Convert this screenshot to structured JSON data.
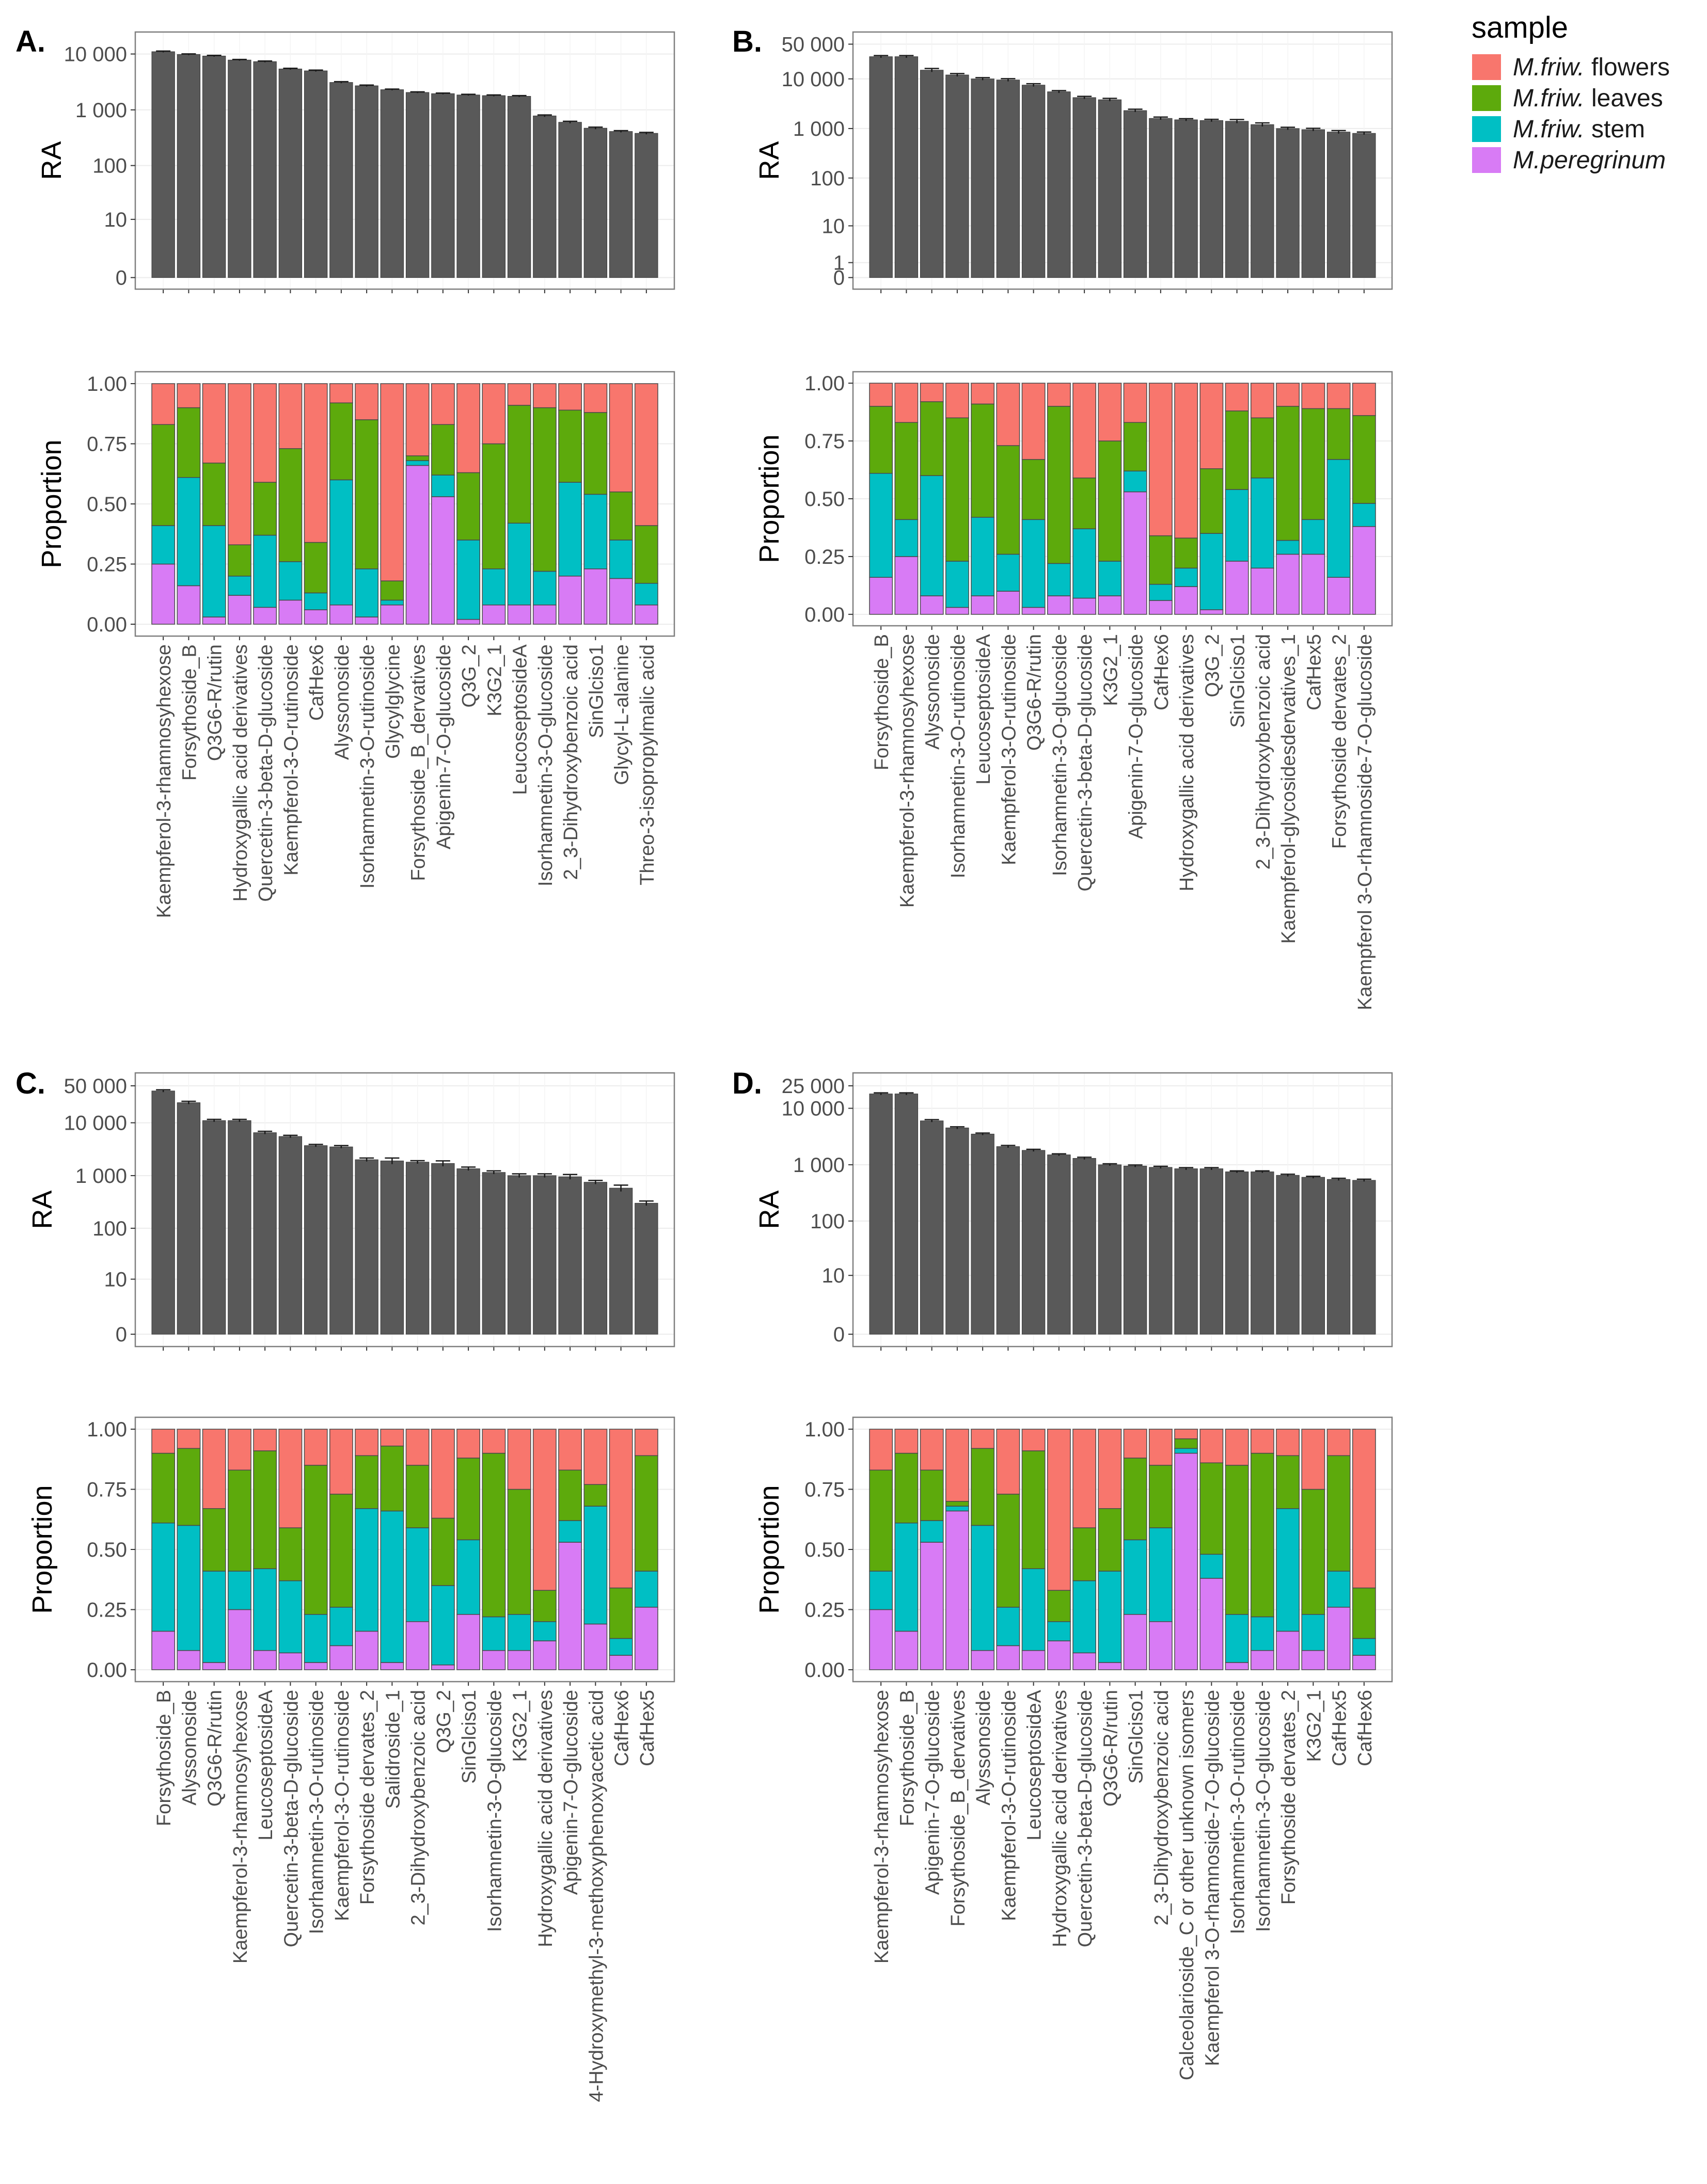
{
  "legend": {
    "title": "sample",
    "items": [
      {
        "name": "M.friw.",
        "suffix": " flowers",
        "color": "#F8766D"
      },
      {
        "name": "M.friw.",
        "suffix": " leaves",
        "color": "#5DAA0C"
      },
      {
        "name": "M.friw.",
        "suffix": " stem",
        "color": "#00BFC4"
      },
      {
        "name": "M.peregrinum",
        "suffix": "",
        "color": "#D87BF5"
      }
    ]
  },
  "colors": {
    "bar_fill": "#595959",
    "panel_border": "#7f7f7f",
    "grid": "#ececec",
    "error_bar": "#1a1a1a"
  },
  "chart_data": [
    {
      "panel": "A.",
      "type": "bar",
      "top": {
        "ylabel": "RA",
        "yscale": "log1p",
        "yticks": [
          0,
          10,
          100,
          1000,
          10000
        ],
        "ytick_labels": [
          "0",
          "10",
          "100",
          "1 000",
          "10 000"
        ],
        "ymax": 15000,
        "values": [
          11000,
          9800,
          9200,
          7800,
          7300,
          5400,
          5000,
          3100,
          2700,
          2300,
          2050,
          1950,
          1850,
          1800,
          1750,
          780,
          600,
          470,
          410,
          380
        ],
        "errors": [
          300,
          250,
          250,
          200,
          200,
          150,
          150,
          100,
          80,
          60,
          50,
          50,
          50,
          50,
          50,
          30,
          25,
          20,
          15,
          15
        ]
      },
      "bottom": {
        "ylabel": "Proportion",
        "type": "stacked-bar",
        "yticks": [
          0,
          0.25,
          0.5,
          0.75,
          1.0
        ],
        "ytick_labels": [
          "0.00",
          "0.25",
          "0.50",
          "0.75",
          "1.00"
        ],
        "series_order": [
          "M.peregrinum",
          "M.friw. stem",
          "M.friw. leaves",
          "M.friw. flowers"
        ],
        "categories": [
          "Kaempferol-3-rhamnosyhexose",
          "Forsythoside_B",
          "Q3G6-R/rutin",
          "Hydroxygallic acid derivatives",
          "Quercetin-3-beta-D-glucoside",
          "Kaempferol-3-O-rutinoside",
          "CafHex6",
          "Alyssonoside",
          "Isorhamnetin-3-O-rutinoside",
          "Glycylglycine",
          "Forsythoside_B_dervatives",
          "Apigenin-7-O-glucoside",
          "Q3G_2",
          "K3G2_1",
          "LeucoseptosideA",
          "Isorhamnetin-3-O-glucoside",
          "2_3-Dihydroxybenzoic acid",
          "SinGlciso1",
          "Glycyl-L-alanine",
          "Threo-3-isopropylmalic acid"
        ],
        "series": [
          {
            "name": "M.peregrinum",
            "values": [
              0.25,
              0.16,
              0.03,
              0.12,
              0.07,
              0.1,
              0.06,
              0.08,
              0.03,
              0.08,
              0.66,
              0.53,
              0.02,
              0.08,
              0.08,
              0.08,
              0.2,
              0.23,
              0.19,
              0.08
            ]
          },
          {
            "name": "M.friw. stem",
            "values": [
              0.16,
              0.45,
              0.38,
              0.08,
              0.3,
              0.16,
              0.07,
              0.52,
              0.2,
              0.02,
              0.02,
              0.09,
              0.33,
              0.15,
              0.34,
              0.14,
              0.39,
              0.31,
              0.16,
              0.09
            ]
          },
          {
            "name": "M.friw. leaves",
            "values": [
              0.42,
              0.29,
              0.26,
              0.13,
              0.22,
              0.47,
              0.21,
              0.32,
              0.62,
              0.08,
              0.02,
              0.21,
              0.28,
              0.52,
              0.49,
              0.68,
              0.3,
              0.34,
              0.2,
              0.24
            ]
          },
          {
            "name": "M.friw. flowers",
            "values": [
              0.17,
              0.1,
              0.33,
              0.67,
              0.41,
              0.27,
              0.66,
              0.08,
              0.15,
              0.82,
              0.3,
              0.17,
              0.37,
              0.25,
              0.09,
              0.1,
              0.11,
              0.12,
              0.45,
              0.59
            ]
          }
        ]
      }
    },
    {
      "panel": "B.",
      "type": "bar",
      "top": {
        "ylabel": "RA",
        "yscale": "log1p",
        "yticks": [
          0,
          1,
          10,
          100,
          1000,
          10000,
          50000
        ],
        "ytick_labels": [
          "0",
          "1",
          "10",
          "100",
          "1 000",
          "10 000",
          "50 000"
        ],
        "ymax": 50000,
        "values": [
          28000,
          28000,
          15000,
          12000,
          10000,
          9500,
          7500,
          5500,
          4200,
          3800,
          2300,
          1600,
          1500,
          1450,
          1400,
          1200,
          1000,
          950,
          850,
          800
        ],
        "errors": [
          1500,
          1500,
          1200,
          800,
          600,
          600,
          500,
          300,
          250,
          250,
          150,
          100,
          80,
          80,
          120,
          100,
          60,
          60,
          60,
          50
        ]
      },
      "bottom": {
        "ylabel": "Proportion",
        "type": "stacked-bar",
        "yticks": [
          0,
          0.25,
          0.5,
          0.75,
          1.0
        ],
        "ytick_labels": [
          "0.00",
          "0.25",
          "0.50",
          "0.75",
          "1.00"
        ],
        "series_order": [
          "M.peregrinum",
          "M.friw. stem",
          "M.friw. leaves",
          "M.friw. flowers"
        ],
        "categories": [
          "Forsythoside_B",
          "Kaempferol-3-rhamnosyhexose",
          "Alyssonoside",
          "Isorhamnetin-3-O-rutinoside",
          "LeucoseptosideA",
          "Kaempferol-3-O-rutinoside",
          "Q3G6-R/rutin",
          "Isorhamnetin-3-O-glucoside",
          "Quercetin-3-beta-D-glucoside",
          "K3G2_1",
          "Apigenin-7-O-glucoside",
          "CafHex6",
          "Hydroxygallic acid derivatives",
          "Q3G_2",
          "SinGlciso1",
          "2_3-Dihydroxybenzoic acid",
          "Kaempferol-glycosidesdervatives_1",
          "CafHex5",
          "Forsythoside dervates_2",
          "Kaempferol 3-O-rhamnoside-7-O-glucoside"
        ],
        "series": [
          {
            "name": "M.peregrinum",
            "values": [
              0.16,
              0.25,
              0.08,
              0.03,
              0.08,
              0.1,
              0.03,
              0.08,
              0.07,
              0.08,
              0.53,
              0.06,
              0.12,
              0.02,
              0.23,
              0.2,
              0.26,
              0.26,
              0.16,
              0.38
            ]
          },
          {
            "name": "M.friw. stem",
            "values": [
              0.45,
              0.16,
              0.52,
              0.2,
              0.34,
              0.16,
              0.38,
              0.14,
              0.3,
              0.15,
              0.09,
              0.07,
              0.08,
              0.33,
              0.31,
              0.39,
              0.06,
              0.15,
              0.51,
              0.1
            ]
          },
          {
            "name": "M.friw. leaves",
            "values": [
              0.29,
              0.42,
              0.32,
              0.62,
              0.49,
              0.47,
              0.26,
              0.68,
              0.22,
              0.52,
              0.21,
              0.21,
              0.13,
              0.28,
              0.34,
              0.26,
              0.58,
              0.48,
              0.22,
              0.38
            ]
          },
          {
            "name": "M.friw. flowers",
            "values": [
              0.1,
              0.17,
              0.08,
              0.15,
              0.09,
              0.27,
              0.33,
              0.1,
              0.41,
              0.25,
              0.17,
              0.66,
              0.67,
              0.37,
              0.12,
              0.15,
              0.1,
              0.11,
              0.11,
              0.14
            ]
          }
        ]
      }
    },
    {
      "panel": "C.",
      "type": "bar",
      "top": {
        "ylabel": "RA",
        "yscale": "log1p",
        "yticks": [
          0,
          10,
          100,
          1000,
          10000,
          50000
        ],
        "ytick_labels": [
          "0",
          "10",
          "100",
          "1 000",
          "10 000",
          "50 000"
        ],
        "ymax": 50000,
        "values": [
          40000,
          24000,
          11000,
          11000,
          6500,
          5500,
          3700,
          3500,
          2000,
          1900,
          1800,
          1700,
          1350,
          1150,
          1000,
          1000,
          950,
          750,
          580,
          300
        ],
        "errors": [
          2000,
          1500,
          600,
          600,
          400,
          300,
          200,
          200,
          150,
          250,
          120,
          200,
          100,
          80,
          80,
          80,
          100,
          60,
          80,
          30
        ]
      },
      "bottom": {
        "ylabel": "Proportion",
        "type": "stacked-bar",
        "yticks": [
          0,
          0.25,
          0.5,
          0.75,
          1.0
        ],
        "ytick_labels": [
          "0.00",
          "0.25",
          "0.50",
          "0.75",
          "1.00"
        ],
        "series_order": [
          "M.peregrinum",
          "M.friw. stem",
          "M.friw. leaves",
          "M.friw. flowers"
        ],
        "categories": [
          "Forsythoside_B",
          "Alyssonoside",
          "Q3G6-R/rutin",
          "Kaempferol-3-rhamnosyhexose",
          "LeucoseptosideA",
          "Quercetin-3-beta-D-glucoside",
          "Isorhamnetin-3-O-rutinoside",
          "Kaempferol-3-O-rutinoside",
          "Forsythoside dervates_2",
          "Salidroside_1",
          "2_3-Dihydroxybenzoic acid",
          "Q3G_2",
          "SinGlciso1",
          "Isorhamnetin-3-O-glucoside",
          "K3G2_1",
          "Hydroxygallic acid derivatives",
          "Apigenin-7-O-glucoside",
          "4-Hydroxymethyl-3-methoxyphenoxyacetic acid",
          "CafHex6",
          "CafHex5"
        ],
        "series": [
          {
            "name": "M.peregrinum",
            "values": [
              0.16,
              0.08,
              0.03,
              0.25,
              0.08,
              0.07,
              0.03,
              0.1,
              0.16,
              0.03,
              0.2,
              0.02,
              0.23,
              0.08,
              0.08,
              0.12,
              0.53,
              0.19,
              0.06,
              0.26
            ]
          },
          {
            "name": "M.friw. stem",
            "values": [
              0.45,
              0.52,
              0.38,
              0.16,
              0.34,
              0.3,
              0.2,
              0.16,
              0.51,
              0.63,
              0.39,
              0.33,
              0.31,
              0.14,
              0.15,
              0.08,
              0.09,
              0.49,
              0.07,
              0.15
            ]
          },
          {
            "name": "M.friw. leaves",
            "values": [
              0.29,
              0.32,
              0.26,
              0.42,
              0.49,
              0.22,
              0.62,
              0.47,
              0.22,
              0.27,
              0.26,
              0.28,
              0.34,
              0.68,
              0.52,
              0.13,
              0.21,
              0.09,
              0.21,
              0.48
            ]
          },
          {
            "name": "M.friw. flowers",
            "values": [
              0.1,
              0.08,
              0.33,
              0.17,
              0.09,
              0.41,
              0.15,
              0.27,
              0.11,
              0.07,
              0.15,
              0.37,
              0.12,
              0.1,
              0.25,
              0.67,
              0.17,
              0.23,
              0.66,
              0.11
            ]
          }
        ]
      }
    },
    {
      "panel": "D.",
      "type": "bar",
      "top": {
        "ylabel": "RA",
        "yscale": "log1p",
        "yticks": [
          0,
          10,
          100,
          1000,
          10000,
          25000
        ],
        "ytick_labels": [
          "0",
          "10",
          "100",
          "1 000",
          "10 000",
          "25 000"
        ],
        "ymax": 25000,
        "values": [
          18000,
          18000,
          6000,
          4500,
          3500,
          2100,
          1800,
          1500,
          1300,
          1000,
          950,
          900,
          850,
          850,
          750,
          750,
          650,
          600,
          550,
          530
        ],
        "errors": [
          800,
          800,
          300,
          200,
          150,
          100,
          80,
          60,
          60,
          40,
          40,
          40,
          40,
          40,
          30,
          30,
          30,
          25,
          25,
          25
        ]
      },
      "bottom": {
        "ylabel": "Proportion",
        "type": "stacked-bar",
        "yticks": [
          0,
          0.25,
          0.5,
          0.75,
          1.0
        ],
        "ytick_labels": [
          "0.00",
          "0.25",
          "0.50",
          "0.75",
          "1.00"
        ],
        "series_order": [
          "M.peregrinum",
          "M.friw. stem",
          "M.friw. leaves",
          "M.friw. flowers"
        ],
        "categories": [
          "Kaempferol-3-rhamnosyhexose",
          "Forsythoside_B",
          "Apigenin-7-O-glucoside",
          "Forsythoside_B_dervatives",
          "Alyssonoside",
          "Kaempferol-3-O-rutinoside",
          "LeucoseptosideA",
          "Hydroxygallic acid derivatives",
          "Quercetin-3-beta-D-glucoside",
          "Q3G6-R/rutin",
          "SinGlciso1",
          "2_3-Dihydroxybenzoic acid",
          "Calceolarioside_C or other unknown isomers",
          "Kaempferol 3-O-rhamnoside-7-O-glucoside",
          "Isorhamnetin-3-O-rutinoside",
          "Isorhamnetin-3-O-glucoside",
          "Forsythoside dervates_2",
          "K3G2_1",
          "CafHex5",
          "CafHex6"
        ],
        "series": [
          {
            "name": "M.peregrinum",
            "values": [
              0.25,
              0.16,
              0.53,
              0.66,
              0.08,
              0.1,
              0.08,
              0.12,
              0.07,
              0.03,
              0.23,
              0.2,
              0.9,
              0.38,
              0.03,
              0.08,
              0.16,
              0.08,
              0.26,
              0.06
            ]
          },
          {
            "name": "M.friw. stem",
            "values": [
              0.16,
              0.45,
              0.09,
              0.02,
              0.52,
              0.16,
              0.34,
              0.08,
              0.3,
              0.38,
              0.31,
              0.39,
              0.02,
              0.1,
              0.2,
              0.14,
              0.51,
              0.15,
              0.15,
              0.07
            ]
          },
          {
            "name": "M.friw. leaves",
            "values": [
              0.42,
              0.29,
              0.21,
              0.02,
              0.32,
              0.47,
              0.49,
              0.13,
              0.22,
              0.26,
              0.34,
              0.26,
              0.04,
              0.38,
              0.62,
              0.68,
              0.22,
              0.52,
              0.48,
              0.21
            ]
          },
          {
            "name": "M.friw. flowers",
            "values": [
              0.17,
              0.1,
              0.17,
              0.3,
              0.08,
              0.27,
              0.09,
              0.67,
              0.41,
              0.33,
              0.12,
              0.15,
              0.04,
              0.14,
              0.15,
              0.1,
              0.11,
              0.25,
              0.11,
              0.66
            ]
          }
        ]
      }
    }
  ]
}
